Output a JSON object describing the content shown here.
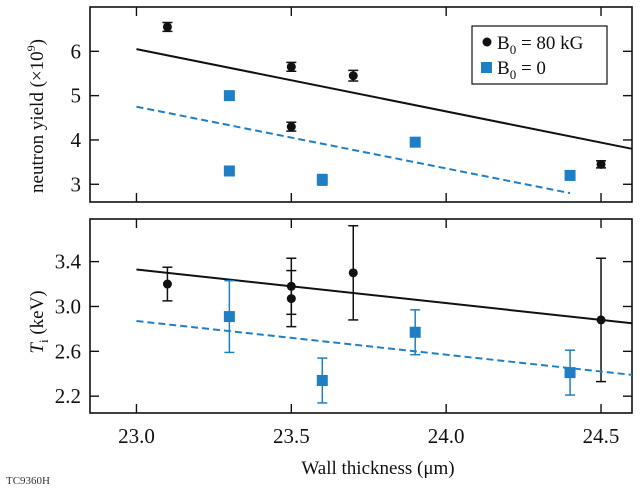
{
  "figure_id": "TC9360H",
  "chart_data": [
    {
      "type": "scatter",
      "panel": "top",
      "xlabel": "",
      "ylabel_main": "neutron yield",
      "ylabel_unit": "(×10",
      "ylabel_exp": "9",
      "ylabel_close": ")",
      "xlim": [
        22.85,
        24.6
      ],
      "ylim": [
        2.6,
        7.0
      ],
      "yticks": [
        3,
        4,
        5,
        6
      ],
      "ytick_labels": [
        "3",
        "4",
        "5",
        "6"
      ],
      "grid": false,
      "legend_position": "top-right",
      "legend": [
        {
          "series": "b80",
          "prefix": "B",
          "sub": "0",
          "suffix": " = 80 kG"
        },
        {
          "series": "b0",
          "prefix": "B",
          "sub": "0",
          "suffix": " = 0"
        }
      ],
      "series": [
        {
          "key": "b80",
          "color": "#111111",
          "marker": "circle",
          "x": [
            23.1,
            23.5,
            23.5,
            23.7,
            24.5
          ],
          "y": [
            6.55,
            5.65,
            4.3,
            5.45,
            3.45
          ],
          "err": [
            0.1,
            0.1,
            0.1,
            0.12,
            0.08
          ],
          "fit": {
            "x": [
              23.0,
              24.6
            ],
            "y": [
              6.05,
              3.8
            ],
            "style": "solid"
          }
        },
        {
          "key": "b0",
          "color": "#1f7fc4",
          "marker": "square",
          "x": [
            23.3,
            23.3,
            23.6,
            23.9,
            24.4
          ],
          "y": [
            5.0,
            3.3,
            3.1,
            3.95,
            3.2
          ],
          "err": [
            0.06,
            0.06,
            0.12,
            0.06,
            0.1
          ],
          "fit": {
            "x": [
              23.0,
              24.4
            ],
            "y": [
              4.75,
              2.8
            ],
            "style": "dashed"
          }
        }
      ]
    },
    {
      "type": "scatter",
      "panel": "bottom",
      "xlabel": "Wall thickness (μm)",
      "ylabel_main": "T",
      "ylabel_sub": "i",
      "ylabel_unit": " (keV)",
      "xlim": [
        22.85,
        24.6
      ],
      "ylim": [
        2.05,
        3.78
      ],
      "xticks": [
        23.0,
        23.5,
        24.0,
        24.5
      ],
      "xtick_labels": [
        "23.0",
        "23.5",
        "24.0",
        "24.5"
      ],
      "yticks": [
        2.2,
        2.6,
        3.0,
        3.4
      ],
      "ytick_labels": [
        "2.2",
        "2.6",
        "3.0",
        "3.4"
      ],
      "grid": false,
      "series": [
        {
          "key": "b80",
          "color": "#111111",
          "marker": "circle",
          "x": [
            23.1,
            23.5,
            23.5,
            23.7,
            24.5
          ],
          "y": [
            3.2,
            3.18,
            3.07,
            3.3,
            2.88
          ],
          "err": [
            0.15,
            0.25,
            0.25,
            0.42,
            0.55
          ],
          "fit": {
            "x": [
              23.0,
              24.6
            ],
            "y": [
              3.33,
              2.85
            ],
            "style": "solid"
          }
        },
        {
          "key": "b0",
          "color": "#1f7fc4",
          "marker": "square",
          "x": [
            23.3,
            23.6,
            23.9,
            24.4
          ],
          "y": [
            2.91,
            2.34,
            2.77,
            2.41
          ],
          "err": [
            0.32,
            0.2,
            0.2,
            0.2
          ],
          "fit": {
            "x": [
              23.0,
              24.6
            ],
            "y": [
              2.87,
              2.39
            ],
            "style": "dashed"
          }
        }
      ]
    }
  ]
}
